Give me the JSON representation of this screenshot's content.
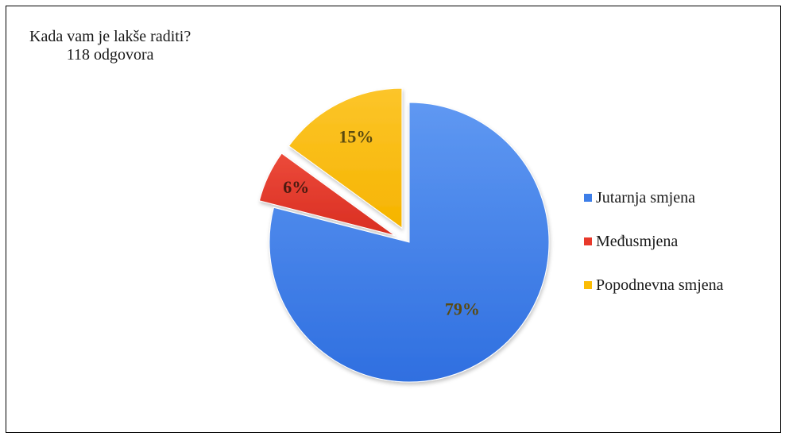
{
  "chart_data": {
    "type": "pie",
    "title": "Kada vam je lakše raditi?",
    "subtitle": "118 odgovora",
    "legend_position": "right",
    "series": [
      {
        "name": "Jutarnja smjena",
        "value": 79,
        "label": "79%",
        "color": "#3d7ee8"
      },
      {
        "name": "Međusmjena",
        "value": 6,
        "label": "6%",
        "color": "#e8392b"
      },
      {
        "name": "Popodnevna smjena",
        "value": 15,
        "label": "15%",
        "color": "#fbbc04"
      }
    ]
  }
}
